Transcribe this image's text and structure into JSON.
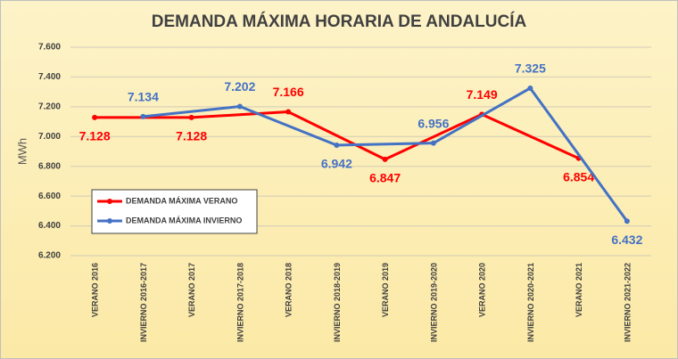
{
  "chart_data": {
    "type": "line",
    "title": "DEMANDA MÁXIMA HORARIA DE ANDALUCÍA",
    "ylabel": "MWh",
    "categories": [
      "VERANO 2016",
      "INVIERNO 2016-2017",
      "VERANO 2017",
      "INVIERNO 2017-2018",
      "VERANO 2018",
      "INVIERNO 2018-2019",
      "VERANO 2019",
      "INVIERNO 2019-2020",
      "VERANO 2020",
      "INVIERNO 2020-2021",
      "VERANO 2021",
      "INVIERNO 2021-2022"
    ],
    "series": [
      {
        "name": "DEMANDA MÁXIMA VERANO",
        "color": "#ff0000",
        "values": [
          7128,
          null,
          7128,
          null,
          7166,
          null,
          6847,
          null,
          7149,
          null,
          6854,
          null
        ],
        "value_labels": [
          "7.128",
          null,
          "7.128",
          null,
          "7.166",
          null,
          "6.847",
          null,
          "7.149",
          null,
          "6.854",
          null
        ]
      },
      {
        "name": "DEMANDA MÁXIMA INVIERNO",
        "color": "#4472c4",
        "values": [
          null,
          7134,
          null,
          7202,
          null,
          6942,
          null,
          6956,
          null,
          7325,
          null,
          6432
        ],
        "value_labels": [
          null,
          "7.134",
          null,
          "7.202",
          null,
          "6.942",
          null,
          "6.956",
          null,
          "7.325",
          null,
          "6.432"
        ]
      }
    ],
    "connect_gaps": true,
    "ylim": [
      6200,
      7600
    ],
    "yticks": [
      {
        "value": 6200,
        "label": "6.200"
      },
      {
        "value": 6400,
        "label": "6.400"
      },
      {
        "value": 6600,
        "label": "6.600"
      },
      {
        "value": 6800,
        "label": "6.800"
      },
      {
        "value": 7000,
        "label": "7.000"
      },
      {
        "value": 7200,
        "label": "7.200"
      },
      {
        "value": 7400,
        "label": "7.400"
      },
      {
        "value": 7600,
        "label": "7.600"
      }
    ],
    "grid": true,
    "legend": "lower left"
  }
}
